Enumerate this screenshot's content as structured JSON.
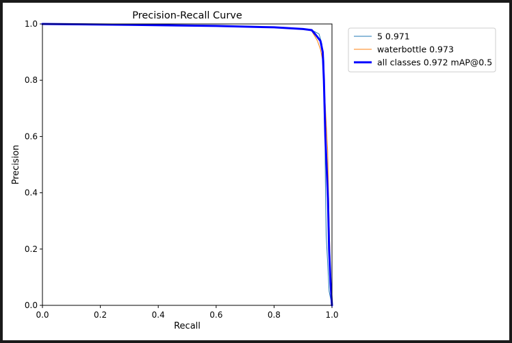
{
  "chart_data": {
    "type": "line",
    "title": "Precision-Recall Curve",
    "xlabel": "Recall",
    "ylabel": "Precision",
    "xlim": [
      0,
      1
    ],
    "ylim": [
      0,
      1
    ],
    "xticks": [
      "0.0",
      "0.2",
      "0.4",
      "0.6",
      "0.8",
      "1.0"
    ],
    "yticks": [
      "0.0",
      "0.2",
      "0.4",
      "0.6",
      "0.8",
      "1.0"
    ],
    "grid": false,
    "legend": "outside-top-right",
    "series": [
      {
        "name": "5 0.971",
        "color": "#1f77b4",
        "width": 1,
        "x": [
          0,
          0.3,
          0.6,
          0.8,
          0.9,
          0.93,
          0.955,
          0.965,
          0.972,
          0.975,
          0.977,
          0.98,
          0.985,
          0.99,
          1.0
        ],
        "y": [
          1.0,
          0.997,
          0.993,
          0.988,
          0.982,
          0.978,
          0.965,
          0.93,
          0.87,
          0.7,
          0.45,
          0.25,
          0.15,
          0.05,
          0.0
        ]
      },
      {
        "name": "waterbottle 0.973",
        "color": "#ff7f0e",
        "width": 1,
        "x": [
          0,
          0.3,
          0.6,
          0.8,
          0.9,
          0.93,
          0.95,
          0.96,
          0.97,
          0.975,
          0.98,
          0.985,
          0.99,
          0.995,
          1.0
        ],
        "y": [
          1.0,
          0.997,
          0.993,
          0.988,
          0.982,
          0.975,
          0.94,
          0.91,
          0.86,
          0.75,
          0.65,
          0.55,
          0.3,
          0.1,
          0.0
        ]
      },
      {
        "name": "all classes 0.972 mAP@0.5",
        "color": "#0000ff",
        "width": 3,
        "x": [
          0,
          0.3,
          0.6,
          0.8,
          0.9,
          0.93,
          0.945,
          0.96,
          0.968,
          0.972,
          0.977,
          0.982,
          0.986,
          0.99,
          0.995,
          1.0
        ],
        "y": [
          1.0,
          0.997,
          0.993,
          0.988,
          0.982,
          0.978,
          0.96,
          0.94,
          0.9,
          0.8,
          0.6,
          0.48,
          0.38,
          0.2,
          0.08,
          0.0
        ]
      }
    ]
  }
}
